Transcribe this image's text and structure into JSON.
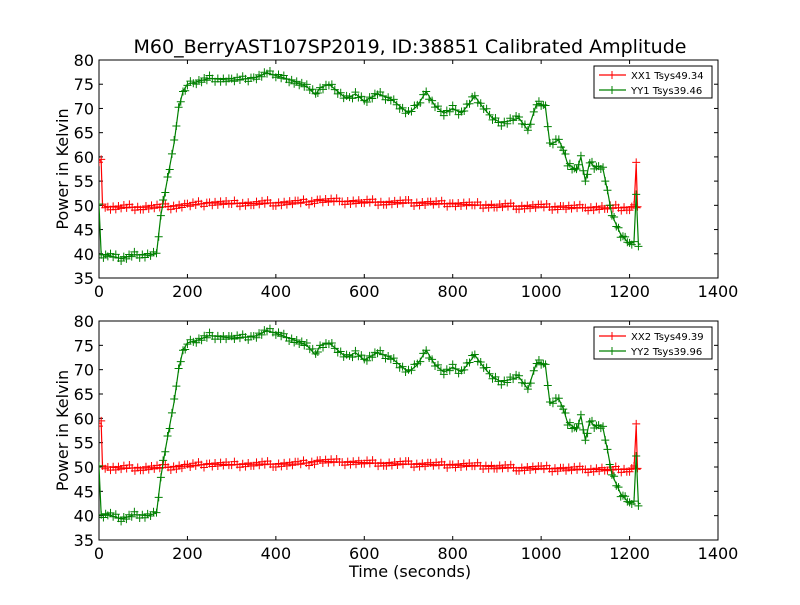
{
  "figure": {
    "title": "M60_BerryAST107SP2019, ID:38851 Calibrated Amplitude",
    "xlabel": "Time (seconds)"
  },
  "colors": {
    "xx": "#ff0000",
    "yy": "#008000",
    "axes": "#000000",
    "background": "#ffffff"
  },
  "chart_data": [
    {
      "type": "line",
      "title": "M60_BerryAST107SP2019, ID:38851 Calibrated Amplitude",
      "xlabel": "",
      "ylabel": "Power in Kelvin",
      "xlim": [
        0,
        1400
      ],
      "ylim": [
        35,
        80
      ],
      "xticks": [
        "0",
        "200",
        "400",
        "600",
        "800",
        "1000",
        "1200",
        "1400"
      ],
      "yticks": [
        "35",
        "40",
        "45",
        "50",
        "55",
        "60",
        "65",
        "70",
        "75",
        "80"
      ],
      "grid": false,
      "legend_position": "top-right",
      "marker": "+",
      "series": [
        {
          "name": "XX1 Tsys49.34",
          "color": "#ff0000",
          "points": [
            [
              0,
              59.5
            ],
            [
              5,
              59.0
            ],
            [
              8,
              50.0
            ],
            [
              20,
              49.7
            ],
            [
              50,
              49.6
            ],
            [
              100,
              49.6
            ],
            [
              150,
              49.7
            ],
            [
              200,
              50.0
            ],
            [
              250,
              50.5
            ],
            [
              300,
              50.4
            ],
            [
              350,
              50.4
            ],
            [
              400,
              50.5
            ],
            [
              450,
              50.5
            ],
            [
              500,
              51.0
            ],
            [
              550,
              50.8
            ],
            [
              600,
              50.7
            ],
            [
              650,
              50.6
            ],
            [
              700,
              50.5
            ],
            [
              750,
              50.4
            ],
            [
              800,
              50.3
            ],
            [
              850,
              50.1
            ],
            [
              900,
              49.9
            ],
            [
              950,
              49.8
            ],
            [
              1000,
              49.7
            ],
            [
              1050,
              49.6
            ],
            [
              1100,
              49.5
            ],
            [
              1150,
              49.5
            ],
            [
              1200,
              49.5
            ],
            [
              1210,
              49.5
            ],
            [
              1215,
              58.5
            ],
            [
              1218,
              49.6
            ],
            [
              1225,
              49.5
            ]
          ]
        },
        {
          "name": "YY1 Tsys39.46",
          "color": "#008000",
          "points": [
            [
              0,
              50.0
            ],
            [
              5,
              39.8
            ],
            [
              20,
              39.7
            ],
            [
              50,
              39.0
            ],
            [
              80,
              39.8
            ],
            [
              110,
              39.7
            ],
            [
              130,
              40.0
            ],
            [
              140,
              48.0
            ],
            [
              150,
              53.0
            ],
            [
              160,
              58.0
            ],
            [
              170,
              63.0
            ],
            [
              180,
              70.0
            ],
            [
              190,
              73.5
            ],
            [
              200,
              75.0
            ],
            [
              220,
              75.5
            ],
            [
              250,
              76.2
            ],
            [
              300,
              75.8
            ],
            [
              350,
              76.3
            ],
            [
              380,
              77.3
            ],
            [
              400,
              76.8
            ],
            [
              430,
              76.0
            ],
            [
              470,
              74.5
            ],
            [
              490,
              72.8
            ],
            [
              500,
              74.3
            ],
            [
              520,
              75.0
            ],
            [
              540,
              73.5
            ],
            [
              560,
              72.0
            ],
            [
              580,
              73.0
            ],
            [
              600,
              71.5
            ],
            [
              630,
              73.0
            ],
            [
              660,
              72.0
            ],
            [
              680,
              70.5
            ],
            [
              700,
              69.0
            ],
            [
              720,
              70.5
            ],
            [
              740,
              73.5
            ],
            [
              760,
              70.5
            ],
            [
              780,
              69.0
            ],
            [
              800,
              70.0
            ],
            [
              820,
              69.0
            ],
            [
              850,
              72.5
            ],
            [
              870,
              70.0
            ],
            [
              890,
              68.0
            ],
            [
              910,
              67.0
            ],
            [
              930,
              67.5
            ],
            [
              950,
              68.0
            ],
            [
              970,
              65.5
            ],
            [
              990,
              71.0
            ],
            [
              1000,
              71.0
            ],
            [
              1010,
              70.0
            ],
            [
              1020,
              62.5
            ],
            [
              1040,
              63.5
            ],
            [
              1050,
              61.5
            ],
            [
              1060,
              58.5
            ],
            [
              1070,
              58.0
            ],
            [
              1080,
              57.0
            ],
            [
              1090,
              60.0
            ],
            [
              1100,
              55.0
            ],
            [
              1110,
              59.0
            ],
            [
              1120,
              58.0
            ],
            [
              1130,
              57.5
            ],
            [
              1140,
              57.5
            ],
            [
              1150,
              53.0
            ],
            [
              1160,
              48.0
            ],
            [
              1170,
              46.0
            ],
            [
              1180,
              44.0
            ],
            [
              1190,
              43.0
            ],
            [
              1200,
              42.0
            ],
            [
              1210,
              42.5
            ],
            [
              1215,
              52.5
            ],
            [
              1220,
              42.0
            ],
            [
              1225,
              42.0
            ]
          ]
        }
      ]
    },
    {
      "type": "line",
      "title": "",
      "xlabel": "Time (seconds)",
      "ylabel": "Power in Kelvin",
      "xlim": [
        0,
        1400
      ],
      "ylim": [
        35,
        80
      ],
      "xticks": [
        "0",
        "200",
        "400",
        "600",
        "800",
        "1000",
        "1200",
        "1400"
      ],
      "yticks": [
        "35",
        "40",
        "45",
        "50",
        "55",
        "60",
        "65",
        "70",
        "75",
        "80"
      ],
      "grid": false,
      "legend_position": "top-right",
      "marker": "+",
      "series": [
        {
          "name": "XX2 Tsys49.39",
          "color": "#ff0000",
          "points": [
            [
              0,
              59.0
            ],
            [
              5,
              59.0
            ],
            [
              8,
              50.0
            ],
            [
              20,
              50.0
            ],
            [
              50,
              49.8
            ],
            [
              100,
              49.8
            ],
            [
              150,
              49.9
            ],
            [
              200,
              50.2
            ],
            [
              250,
              50.6
            ],
            [
              300,
              50.5
            ],
            [
              350,
              50.6
            ],
            [
              400,
              50.6
            ],
            [
              450,
              50.6
            ],
            [
              500,
              51.2
            ],
            [
              550,
              51.0
            ],
            [
              600,
              50.9
            ],
            [
              650,
              50.7
            ],
            [
              700,
              50.6
            ],
            [
              750,
              50.5
            ],
            [
              800,
              50.4
            ],
            [
              850,
              50.3
            ],
            [
              900,
              50.0
            ],
            [
              950,
              49.8
            ],
            [
              1000,
              49.7
            ],
            [
              1050,
              49.6
            ],
            [
              1100,
              49.5
            ],
            [
              1150,
              49.5
            ],
            [
              1200,
              49.5
            ],
            [
              1210,
              49.6
            ],
            [
              1215,
              58.5
            ],
            [
              1218,
              49.6
            ],
            [
              1225,
              49.5
            ]
          ]
        },
        {
          "name": "YY2 Tsys39.96",
          "color": "#008000",
          "points": [
            [
              0,
              50.0
            ],
            [
              5,
              40.2
            ],
            [
              20,
              40.3
            ],
            [
              50,
              39.3
            ],
            [
              80,
              40.2
            ],
            [
              110,
              40.0
            ],
            [
              130,
              40.5
            ],
            [
              140,
              48.0
            ],
            [
              150,
              53.5
            ],
            [
              160,
              58.5
            ],
            [
              170,
              63.5
            ],
            [
              180,
              70.0
            ],
            [
              190,
              74.0
            ],
            [
              200,
              75.5
            ],
            [
              220,
              76.0
            ],
            [
              250,
              77.0
            ],
            [
              300,
              76.5
            ],
            [
              350,
              76.8
            ],
            [
              380,
              78.0
            ],
            [
              400,
              77.5
            ],
            [
              430,
              76.5
            ],
            [
              470,
              75.0
            ],
            [
              490,
              73.0
            ],
            [
              500,
              75.0
            ],
            [
              520,
              75.5
            ],
            [
              540,
              74.0
            ],
            [
              560,
              72.5
            ],
            [
              580,
              73.5
            ],
            [
              600,
              72.0
            ],
            [
              630,
              73.5
            ],
            [
              660,
              72.5
            ],
            [
              680,
              71.0
            ],
            [
              700,
              69.5
            ],
            [
              720,
              71.0
            ],
            [
              740,
              74.0
            ],
            [
              760,
              71.0
            ],
            [
              780,
              69.5
            ],
            [
              800,
              70.5
            ],
            [
              820,
              69.5
            ],
            [
              850,
              73.0
            ],
            [
              870,
              70.5
            ],
            [
              890,
              68.5
            ],
            [
              910,
              67.5
            ],
            [
              930,
              68.0
            ],
            [
              950,
              68.5
            ],
            [
              970,
              66.0
            ],
            [
              990,
              71.5
            ],
            [
              1000,
              71.5
            ],
            [
              1010,
              70.5
            ],
            [
              1020,
              63.0
            ],
            [
              1040,
              64.0
            ],
            [
              1050,
              62.0
            ],
            [
              1060,
              59.0
            ],
            [
              1070,
              58.5
            ],
            [
              1080,
              57.5
            ],
            [
              1090,
              60.5
            ],
            [
              1100,
              55.5
            ],
            [
              1110,
              59.5
            ],
            [
              1120,
              58.5
            ],
            [
              1130,
              58.0
            ],
            [
              1140,
              58.0
            ],
            [
              1150,
              53.5
            ],
            [
              1160,
              48.5
            ],
            [
              1170,
              46.5
            ],
            [
              1180,
              44.5
            ],
            [
              1190,
              43.5
            ],
            [
              1200,
              42.5
            ],
            [
              1210,
              43.0
            ],
            [
              1215,
              52.5
            ],
            [
              1220,
              42.5
            ],
            [
              1225,
              42.5
            ]
          ]
        }
      ]
    }
  ]
}
